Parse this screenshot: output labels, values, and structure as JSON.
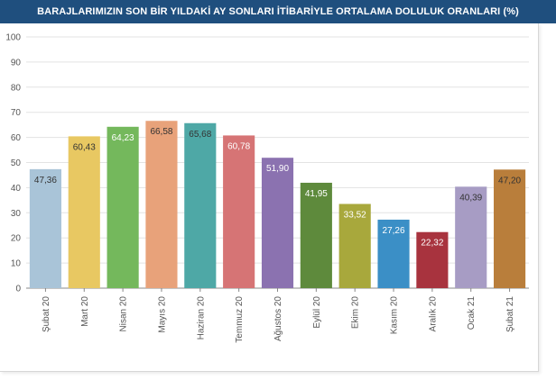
{
  "title": "BARAJLARIMIZIN SON BİR YILDAKİ AY SONLARI İTİBARİYLE ORTALAMA DOLULUK ORANLARI (%)",
  "colors": {
    "title_bar": "#1f4f7e",
    "title_text": "#ffffff",
    "grid": "#e3e3e3",
    "axis": "#888888"
  },
  "chart_data": {
    "type": "bar",
    "title": "BARAJLARIMIZIN SON BİR YILDAKİ AY SONLARI İTİBARİYLE ORTALAMA DOLULUK ORANLARI (%)",
    "categories": [
      "Şubat 20",
      "Mart 20",
      "Nisan 20",
      "Mayıs 20",
      "Haziran 20",
      "Temmuz 20",
      "Ağustos 20",
      "Eylül 20",
      "Ekim 20",
      "Kasım 20",
      "Aralık 20",
      "Ocak 21",
      "Şubat 21"
    ],
    "values": [
      47.36,
      60.43,
      64.23,
      66.58,
      65.68,
      60.78,
      51.9,
      41.95,
      33.52,
      27.26,
      22.32,
      40.39,
      47.2
    ],
    "value_labels": [
      "47,36",
      "60,43",
      "64,23",
      "66,58",
      "65,68",
      "60,78",
      "51,90",
      "41,95",
      "33,52",
      "27,26",
      "22,32",
      "40,39",
      "47,20"
    ],
    "bar_colors": [
      "#a9c4d8",
      "#e8c862",
      "#74b85c",
      "#e8a27a",
      "#4ea8a6",
      "#d67475",
      "#8b72b0",
      "#5e8a3c",
      "#a8a83c",
      "#3b8fc6",
      "#a8333e",
      "#a79cc4",
      "#b97e3b"
    ],
    "label_colors": [
      "#333333",
      "#333333",
      "#ffffff",
      "#333333",
      "#333333",
      "#ffffff",
      "#ffffff",
      "#ffffff",
      "#ffffff",
      "#ffffff",
      "#ffffff",
      "#333333",
      "#333333"
    ],
    "yticks": [
      0,
      10,
      20,
      30,
      40,
      50,
      60,
      70,
      80,
      90,
      100
    ],
    "ylim": [
      0,
      100
    ],
    "grid": true,
    "legend": "none",
    "xlabel": "",
    "ylabel": ""
  }
}
